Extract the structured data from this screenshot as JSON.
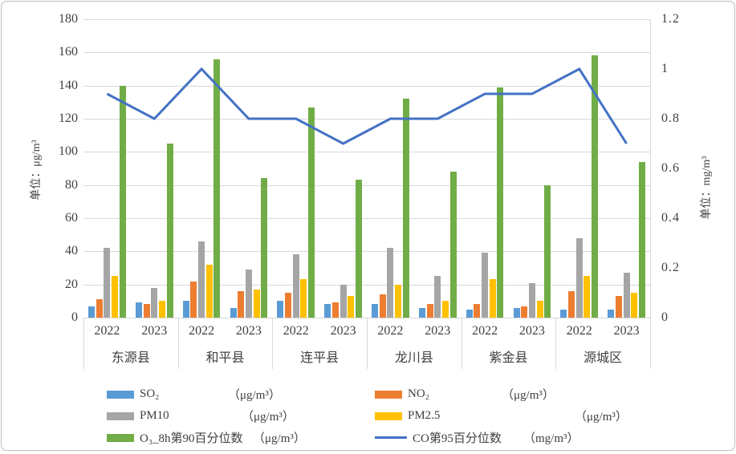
{
  "chart_data": {
    "type": "bar+line",
    "title": "",
    "counties": [
      "东源县",
      "和平县",
      "连平县",
      "龙川县",
      "紫金县",
      "源城区"
    ],
    "years": [
      "2022",
      "2023"
    ],
    "bar_series": [
      {
        "key": "so2",
        "name": "SO₂",
        "unit": "（μg/m³）",
        "color": "#5B9BD5",
        "values": [
          7,
          9,
          10,
          6,
          10,
          8,
          8,
          6,
          5,
          6,
          5,
          5
        ]
      },
      {
        "key": "no2",
        "name": "NO₂",
        "unit": "（μg/m³）",
        "color": "#ED7D31",
        "values": [
          11,
          8,
          22,
          16,
          15,
          9,
          14,
          8,
          8,
          7,
          16,
          13
        ]
      },
      {
        "key": "pm10",
        "name": "PM10",
        "unit": "（μg/m³）",
        "color": "#A5A5A5",
        "values": [
          42,
          18,
          46,
          29,
          38,
          20,
          42,
          25,
          39,
          21,
          48,
          27
        ]
      },
      {
        "key": "pm25",
        "name": "PM2.5",
        "unit": "（μg/m³）",
        "color": "#FFC000",
        "values": [
          25,
          10,
          32,
          17,
          23,
          13,
          20,
          10,
          23,
          10,
          25,
          15
        ]
      },
      {
        "key": "o3-8h-p90",
        "name": "O₃_8h第90百分位数",
        "unit": "（μg/m³）",
        "color": "#70AD47",
        "values": [
          140,
          105,
          156,
          84,
          127,
          83,
          132,
          88,
          139,
          80,
          158,
          94
        ]
      }
    ],
    "line_series": {
      "key": "co-p95",
      "name": "CO第95百分位数",
      "unit": "（mg/m³）",
      "color": "#4472C4",
      "values": [
        0.9,
        0.8,
        1.0,
        0.8,
        0.8,
        0.7,
        0.8,
        0.8,
        0.9,
        0.9,
        1.0,
        0.7
      ]
    },
    "left_axis": {
      "title": "单位：μg/m³",
      "min": 0,
      "max": 180,
      "step": 20,
      "ticks": [
        "0",
        "20",
        "40",
        "60",
        "80",
        "100",
        "120",
        "140",
        "160",
        "180"
      ]
    },
    "right_axis": {
      "title": "单位：mg/m³",
      "min": 0,
      "max": 1.2,
      "step": 0.2,
      "ticks": [
        "0",
        "0.2",
        "0.4",
        "0.6",
        "0.8",
        "1",
        "1.2"
      ]
    },
    "grid": true,
    "legend_position": "bottom"
  },
  "legend": {
    "items": [
      {
        "name": "SO₂",
        "unit": "（μg/m³）",
        "color": "#5B9BD5",
        "swatch": "bar"
      },
      {
        "name": "NO₂",
        "unit": "（μg/m³）",
        "color": "#ED7D31",
        "swatch": "bar"
      },
      {
        "name": "PM10",
        "unit": "（μg/m³）",
        "color": "#A5A5A5",
        "swatch": "bar"
      },
      {
        "name": "PM2.5",
        "unit": "（μg/m³）",
        "color": "#FFC000",
        "swatch": "bar"
      },
      {
        "name": "O₃_8h第90百分位数",
        "unit": "（μg/m³）",
        "color": "#70AD47",
        "swatch": "bar"
      },
      {
        "name": "CO第95百分位数",
        "unit": "（mg/m³）",
        "color": "#4472C4",
        "swatch": "line"
      }
    ]
  }
}
